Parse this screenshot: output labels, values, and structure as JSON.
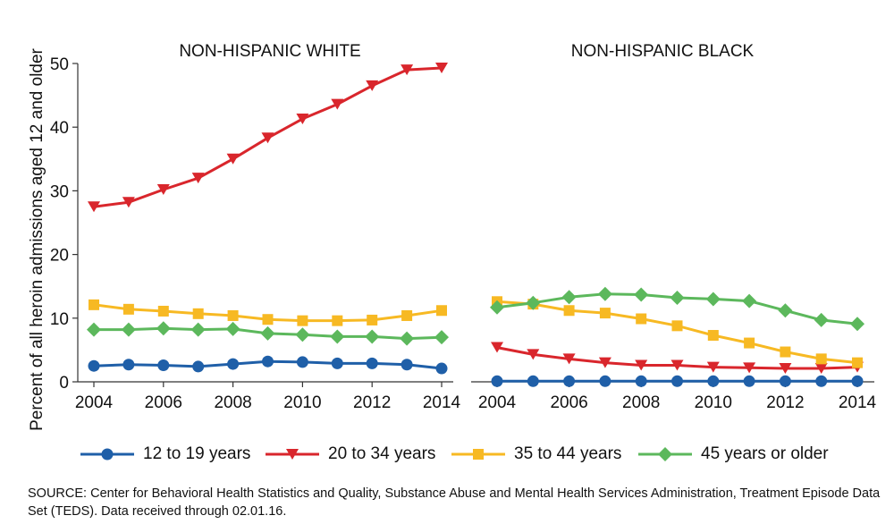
{
  "chart_data": [
    {
      "type": "line",
      "title": "NON-HISPANIC WHITE",
      "ylabel": "Percent of all heroin admissions aged 12 and older",
      "ylim": [
        0,
        50
      ],
      "xlim": [
        2004,
        2014
      ],
      "y_ticks": [
        "0",
        "10",
        "20",
        "30",
        "40",
        "50"
      ],
      "x_ticks": [
        "2004",
        "2006",
        "2008",
        "2010",
        "2012",
        "2014"
      ],
      "x": [
        2004,
        2005,
        2006,
        2007,
        2008,
        2009,
        2010,
        2011,
        2012,
        2013,
        2014
      ],
      "series": [
        {
          "name": "12 to 19 years",
          "color": "#1f5fa8",
          "marker": "circle",
          "values": [
            2.5,
            2.7,
            2.6,
            2.4,
            2.8,
            3.2,
            3.1,
            2.9,
            2.9,
            2.7,
            2.1
          ]
        },
        {
          "name": "20 to 34 years",
          "color": "#d9262c",
          "marker": "triangle-down",
          "values": [
            27.5,
            28.2,
            30.2,
            32.0,
            35.0,
            38.3,
            41.3,
            43.6,
            46.5,
            49.0,
            49.3
          ]
        },
        {
          "name": "35 to 44 years",
          "color": "#f7b923",
          "marker": "square",
          "values": [
            12.1,
            11.4,
            11.1,
            10.7,
            10.4,
            9.8,
            9.6,
            9.6,
            9.7,
            10.4,
            11.2
          ]
        },
        {
          "name": "45 years or older",
          "color": "#5cb85c",
          "marker": "diamond",
          "values": [
            8.2,
            8.2,
            8.4,
            8.2,
            8.3,
            7.6,
            7.4,
            7.1,
            7.1,
            6.8,
            7.0
          ]
        }
      ]
    },
    {
      "type": "line",
      "title": "NON-HISPANIC BLACK",
      "ylim": [
        0,
        50
      ],
      "xlim": [
        2004,
        2014
      ],
      "x_ticks": [
        "2004",
        "2006",
        "2008",
        "2010",
        "2012",
        "2014"
      ],
      "x": [
        2004,
        2005,
        2006,
        2007,
        2008,
        2009,
        2010,
        2011,
        2012,
        2013,
        2014
      ],
      "series": [
        {
          "name": "12 to 19 years",
          "color": "#1f5fa8",
          "marker": "circle",
          "values": [
            0.1,
            0.1,
            0.1,
            0.1,
            0.1,
            0.1,
            0.1,
            0.1,
            0.1,
            0.1,
            0.1
          ]
        },
        {
          "name": "20 to 34 years",
          "color": "#d9262c",
          "marker": "triangle-down",
          "values": [
            5.4,
            4.3,
            3.6,
            3.0,
            2.6,
            2.6,
            2.3,
            2.2,
            2.1,
            2.1,
            2.3
          ]
        },
        {
          "name": "35 to 44 years",
          "color": "#f7b923",
          "marker": "square",
          "values": [
            12.6,
            12.2,
            11.2,
            10.8,
            9.9,
            8.8,
            7.3,
            6.1,
            4.7,
            3.6,
            3.0
          ]
        },
        {
          "name": "45 years or older",
          "color": "#5cb85c",
          "marker": "diamond",
          "values": [
            11.7,
            12.4,
            13.3,
            13.8,
            13.7,
            13.2,
            13.0,
            12.7,
            11.2,
            9.7,
            9.1
          ]
        }
      ]
    }
  ],
  "legend": {
    "items": [
      {
        "label": "12 to 19 years",
        "color": "#1f5fa8",
        "marker": "circle"
      },
      {
        "label": "20 to 34 years",
        "color": "#d9262c",
        "marker": "triangle-down"
      },
      {
        "label": "35 to 44 years",
        "color": "#f7b923",
        "marker": "square"
      },
      {
        "label": "45 years or older",
        "color": "#5cb85c",
        "marker": "diamond"
      }
    ]
  },
  "source": {
    "text": "SOURCE: Center for Behavioral Health Statistics and Quality, Substance Abuse and Mental Health Services Administration, Treatment Episode Data Set (TEDS). Data received through 02.01.16."
  }
}
